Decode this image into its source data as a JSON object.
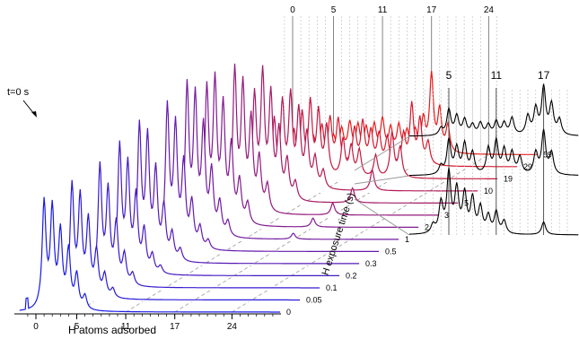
{
  "chart_data": [
    {
      "type": "line",
      "style": "waterfall-3d",
      "xlabel": "H atoms adsorbed",
      "ylabel": "H exposure time (s)",
      "x_ticks": [
        0,
        5,
        11,
        17,
        24
      ],
      "top_ticks": [
        0,
        5,
        11,
        17,
        24
      ],
      "annotation": "t=0 s",
      "color_scale": {
        "start": "#1a1ae6",
        "middle": "#7a1a9a",
        "end": "#e61a1a"
      },
      "series": [
        {
          "time_label": "0",
          "peaks": [
            [
              1,
              0.78
            ],
            [
              2,
              0.72
            ],
            [
              3,
              0.55
            ],
            [
              4,
              0.42
            ],
            [
              5,
              0.25
            ],
            [
              6,
              0.1
            ]
          ],
          "ypos": 0
        },
        {
          "time_label": "0.05",
          "peaks": [
            [
              2,
              0.75
            ],
            [
              3,
              0.65
            ],
            [
              4,
              0.5
            ],
            [
              5,
              0.3
            ],
            [
              6,
              0.15
            ],
            [
              7,
              0.06
            ]
          ],
          "ypos": 1
        },
        {
          "time_label": "0.1",
          "peaks": [
            [
              3,
              0.8
            ],
            [
              4,
              0.62
            ],
            [
              5,
              0.4
            ],
            [
              6,
              0.2
            ],
            [
              7,
              0.08
            ]
          ],
          "ypos": 2
        },
        {
          "time_label": "0.2",
          "peaks": [
            [
              3,
              0.85
            ],
            [
              4,
              0.7
            ],
            [
              5,
              0.5
            ],
            [
              6,
              0.28
            ],
            [
              7,
              0.12
            ],
            [
              8,
              0.05
            ]
          ],
          "ypos": 3
        },
        {
          "time_label": "0.3",
          "peaks": [
            [
              3,
              0.9
            ],
            [
              4,
              0.8
            ],
            [
              5,
              0.58
            ],
            [
              6,
              0.35
            ],
            [
              7,
              0.18
            ],
            [
              8,
              0.08
            ]
          ],
          "ypos": 4
        },
        {
          "time_label": "0.5",
          "peaks": [
            [
              4,
              0.95
            ],
            [
              5,
              0.8
            ],
            [
              6,
              0.55
            ],
            [
              7,
              0.3
            ],
            [
              8,
              0.14
            ],
            [
              9,
              0.06
            ]
          ],
          "ypos": 5
        },
        {
          "time_label": "1",
          "peaks": [
            [
              4,
              1.0
            ],
            [
              5,
              0.9
            ],
            [
              6,
              0.7
            ],
            [
              7,
              0.42
            ],
            [
              8,
              0.22
            ],
            [
              9,
              0.1
            ],
            [
              17,
              0.04
            ]
          ],
          "ypos": 6
        },
        {
          "time_label": "2",
          "peaks": [
            [
              4,
              0.9
            ],
            [
              5,
              0.92
            ],
            [
              6,
              0.76
            ],
            [
              7,
              0.5
            ],
            [
              8,
              0.28
            ],
            [
              9,
              0.14
            ],
            [
              17,
              0.06
            ]
          ],
          "ypos": 7
        },
        {
          "time_label": "3",
          "peaks": [
            [
              5,
              0.95
            ],
            [
              6,
              0.82
            ],
            [
              7,
              0.6
            ],
            [
              8,
              0.35
            ],
            [
              9,
              0.18
            ],
            [
              17,
              0.08
            ]
          ],
          "ypos": 8
        },
        {
          "time_label": "5",
          "peaks": [
            [
              5,
              0.7
            ],
            [
              6,
              0.82
            ],
            [
              7,
              0.68
            ],
            [
              8,
              0.45
            ],
            [
              9,
              0.26
            ],
            [
              10,
              0.12
            ],
            [
              17,
              0.1
            ]
          ],
          "ypos": 9
        },
        {
          "time_label": "10",
          "peaks": [
            [
              5,
              0.45
            ],
            [
              6,
              0.55
            ],
            [
              7,
              0.6
            ],
            [
              8,
              0.5
            ],
            [
              9,
              0.35
            ],
            [
              10,
              0.2
            ],
            [
              11,
              0.12
            ],
            [
              17,
              0.14
            ]
          ],
          "ypos": 10
        },
        {
          "time_label": "19",
          "peaks": [
            [
              5,
              0.3
            ],
            [
              6,
              0.4
            ],
            [
              7,
              0.48
            ],
            [
              8,
              0.42
            ],
            [
              9,
              0.33
            ],
            [
              11,
              0.25
            ],
            [
              12,
              0.2
            ],
            [
              13,
              0.18
            ],
            [
              15,
              0.15
            ],
            [
              17,
              0.3
            ],
            [
              18,
              0.2
            ]
          ],
          "ypos": 11
        },
        {
          "time_label": "29",
          "peaks": [
            [
              5,
              0.18
            ],
            [
              6,
              0.25
            ],
            [
              7,
              0.3
            ],
            [
              8,
              0.3
            ],
            [
              10,
              0.24
            ],
            [
              11,
              0.28
            ],
            [
              12,
              0.22
            ],
            [
              13,
              0.2
            ],
            [
              14,
              0.18
            ],
            [
              16,
              0.2
            ],
            [
              17,
              0.4
            ],
            [
              18,
              0.3
            ],
            [
              19,
              0.15
            ]
          ],
          "ypos": 12
        },
        {
          "time_label": "59",
          "peaks": [
            [
              5,
              0.12
            ],
            [
              6,
              0.16
            ],
            [
              7,
              0.2
            ],
            [
              8,
              0.18
            ],
            [
              9,
              0.16
            ],
            [
              10,
              0.18
            ],
            [
              11,
              0.22
            ],
            [
              12,
              0.16
            ],
            [
              13,
              0.18
            ],
            [
              14,
              0.14
            ],
            [
              15,
              0.14
            ],
            [
              16,
              0.22
            ],
            [
              17,
              0.52
            ],
            [
              18,
              0.28
            ],
            [
              19,
              0.18
            ]
          ],
          "ypos": 13
        }
      ]
    },
    {
      "type": "line",
      "style": "stacked-spectra-zoom",
      "top_ticks": [
        5,
        11,
        17
      ],
      "series": [
        {
          "peaks": [
            [
              4,
              0.08
            ],
            [
              5,
              0.3
            ],
            [
              6,
              0.22
            ],
            [
              7,
              0.18
            ],
            [
              8,
              0.12
            ],
            [
              9,
              0.14
            ],
            [
              10,
              0.12
            ],
            [
              11,
              0.16
            ],
            [
              12,
              0.14
            ],
            [
              13,
              0.2
            ],
            [
              15,
              0.22
            ],
            [
              16,
              0.3
            ],
            [
              17,
              0.55
            ],
            [
              18,
              0.35
            ],
            [
              19,
              0.18
            ]
          ]
        },
        {
          "peaks": [
            [
              4,
              0.1
            ],
            [
              5,
              0.4
            ],
            [
              6,
              0.3
            ],
            [
              7,
              0.35
            ],
            [
              8,
              0.25
            ],
            [
              10,
              0.3
            ],
            [
              11,
              0.38
            ],
            [
              12,
              0.28
            ],
            [
              13,
              0.25
            ],
            [
              14,
              0.2
            ],
            [
              16,
              0.25
            ],
            [
              17,
              0.5
            ],
            [
              18,
              0.25
            ]
          ]
        },
        {
          "peaks": [
            [
              3,
              0.1
            ],
            [
              4,
              0.35
            ],
            [
              5,
              0.7
            ],
            [
              6,
              0.5
            ],
            [
              7,
              0.45
            ],
            [
              8,
              0.4
            ],
            [
              9,
              0.3
            ],
            [
              10,
              0.2
            ],
            [
              11,
              0.25
            ],
            [
              12,
              0.15
            ],
            [
              17,
              0.15
            ]
          ]
        }
      ]
    }
  ]
}
